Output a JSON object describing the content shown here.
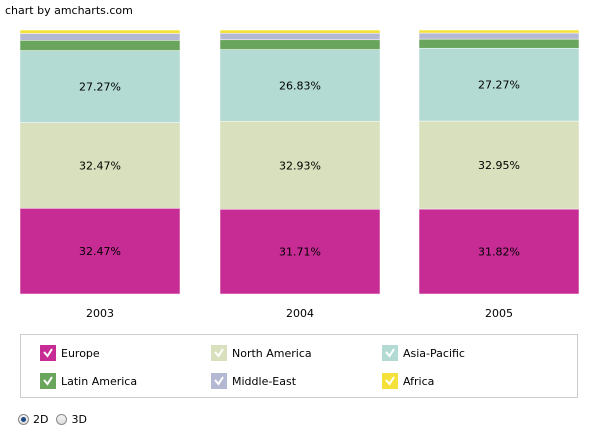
{
  "credit": "chart by amcharts.com",
  "chart_data": {
    "type": "bar",
    "stacked": true,
    "percent": true,
    "categories": [
      "2003",
      "2004",
      "2005"
    ],
    "series": [
      {
        "name": "Europe",
        "color": "#c72c95",
        "values": [
          32.47,
          31.71,
          31.82
        ]
      },
      {
        "name": "North America",
        "color": "#d8e0bd",
        "values": [
          32.47,
          32.93,
          32.95
        ]
      },
      {
        "name": "Asia-Pacific",
        "color": "#b3dbd4",
        "values": [
          27.27,
          26.83,
          27.27
        ]
      },
      {
        "name": "Latin America",
        "color": "#69a55c",
        "values": [
          3.9,
          3.66,
          3.41
        ]
      },
      {
        "name": "Middle-East",
        "color": "#b5b8d3",
        "values": [
          2.6,
          2.44,
          2.27
        ]
      },
      {
        "name": "Africa",
        "color": "#f4e23b",
        "values": [
          1.3,
          1.22,
          1.14
        ]
      }
    ],
    "data_labels": [
      [
        "32.47%",
        "31.71%",
        "31.82%"
      ],
      [
        "32.47%",
        "32.93%",
        "32.95%"
      ],
      [
        "27.27%",
        "26.83%",
        "27.27%"
      ]
    ],
    "ylim": [
      0,
      100
    ],
    "grid": false,
    "legend": "bottom"
  },
  "legend": {
    "items": [
      {
        "label": "Europe",
        "color": "#c72c95"
      },
      {
        "label": "North America",
        "color": "#d8e0bd"
      },
      {
        "label": "Asia-Pacific",
        "color": "#b3dbd4"
      },
      {
        "label": "Latin America",
        "color": "#69a55c"
      },
      {
        "label": "Middle-East",
        "color": "#b5b8d3"
      },
      {
        "label": "Africa",
        "color": "#f4e23b"
      }
    ]
  },
  "controls": {
    "option_2d": "2D",
    "option_3d": "3D",
    "selected": "2D"
  }
}
